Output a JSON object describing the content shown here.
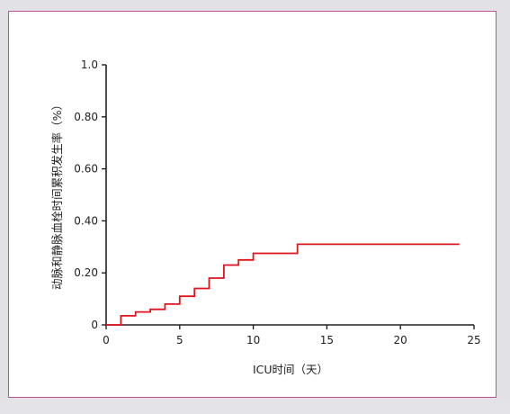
{
  "chart_data": {
    "type": "line",
    "step": true,
    "title": "",
    "xlabel": "ICU时间（天）",
    "ylabel": "动脉和静脉血栓时间累积发生率（%）",
    "xlim": [
      0,
      25
    ],
    "ylim": [
      0,
      1.0
    ],
    "xticks": [
      "0",
      "5",
      "10",
      "15",
      "20",
      "25"
    ],
    "yticks": [
      "0",
      "0.20",
      "0.40",
      "0.60",
      "0.80",
      "1.0"
    ],
    "grid": false,
    "series": [
      {
        "color": "#e0141e",
        "points": [
          [
            0,
            0
          ],
          [
            1,
            0
          ],
          [
            1,
            0.035
          ],
          [
            2,
            0.035
          ],
          [
            2,
            0.05
          ],
          [
            3,
            0.05
          ],
          [
            3,
            0.06
          ],
          [
            4,
            0.06
          ],
          [
            4,
            0.08
          ],
          [
            5,
            0.08
          ],
          [
            5,
            0.11
          ],
          [
            6,
            0.11
          ],
          [
            6,
            0.14
          ],
          [
            7,
            0.14
          ],
          [
            7,
            0.18
          ],
          [
            8,
            0.18
          ],
          [
            8,
            0.23
          ],
          [
            9,
            0.23
          ],
          [
            9,
            0.25
          ],
          [
            10,
            0.25
          ],
          [
            10,
            0.275
          ],
          [
            13,
            0.275
          ],
          [
            13,
            0.31
          ],
          [
            24,
            0.31
          ]
        ]
      }
    ]
  },
  "colors": {
    "frame_border": "#c0509a",
    "axis": "#222222",
    "series": "#e0141e"
  }
}
